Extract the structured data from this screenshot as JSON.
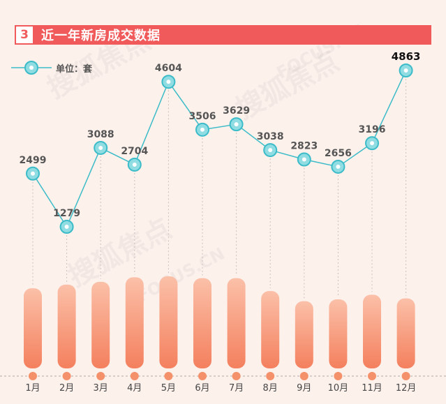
{
  "header": {
    "number": "3",
    "title": "近一年新房成交数据"
  },
  "legend": {
    "label": "单位：套"
  },
  "watermark": {
    "brand": "搜狐焦点",
    "site": "FOCUS.CN"
  },
  "colors": {
    "header_red": "#f05a5a",
    "line_teal": "#3cbcc8",
    "bar_top": "#fbc0a8",
    "bar_bottom": "#f4805e",
    "dot": "#f4906a",
    "background": "#fdf1ec"
  },
  "chart_data": {
    "type": "line",
    "categories": [
      "1月",
      "2月",
      "3月",
      "4月",
      "5月",
      "6月",
      "7月",
      "8月",
      "9月",
      "10月",
      "11月",
      "12月"
    ],
    "series": [
      {
        "name": "",
        "values": [
          2499,
          1279,
          3088,
          2704,
          4604,
          3506,
          3629,
          3038,
          2823,
          2656,
          3196,
          4863
        ]
      }
    ],
    "data_labels": [
      "2499",
      "1279",
      "3088",
      "2704",
      "4604",
      "3506",
      "3629",
      "3038",
      "2823",
      "2656",
      "3196",
      "4863"
    ],
    "bar_levels": [
      0.87,
      0.91,
      0.94,
      0.99,
      1.0,
      0.98,
      0.98,
      0.84,
      0.73,
      0.75,
      0.8,
      0.76
    ],
    "highlight_index": 11
  }
}
